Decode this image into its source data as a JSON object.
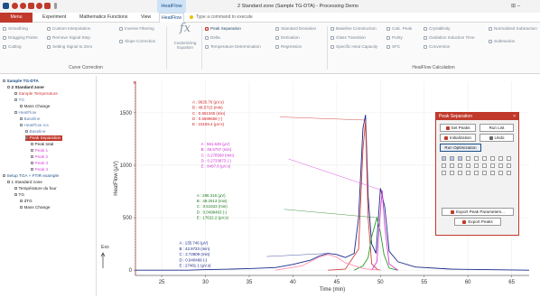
{
  "window": {
    "title": "2 Standard zone (Sample TG-DTA) - Processing Demo",
    "context_tab": "HeatFlow",
    "ctrl_glyph": "⊞ –"
  },
  "tabs": [
    "Menu",
    "Experiment",
    "Mathematics Functions",
    "View",
    "HeatFlow"
  ],
  "tell_me": "Type a command to execute",
  "ribbon": {
    "curve_correction": {
      "group": "Curve Correction",
      "items": [
        "Smoothing",
        "Dragging Points",
        "Cutting",
        "Custom Interpolation",
        "Remove Signal Step",
        "Setting Signal to Zero",
        "Inverse Filtering",
        "Slope Correction"
      ]
    },
    "customizing_equation": "Customizing Equation",
    "peaks": {
      "items": [
        "Peak Separation",
        "Delta",
        "Temperature Determination"
      ]
    },
    "derived": {
      "items": [
        "Standard Deviation",
        "Derivation",
        "Regression"
      ]
    },
    "heatflow_calc": {
      "group": "HeatFlow Calculation",
      "items": [
        "Baseline Construction",
        "Glass Transition",
        "Specific Heat Capacity",
        "Calc. Peak",
        "Purity",
        "SFC",
        "Crystallinity",
        "Oxidation Induction Time",
        "Conversion",
        "Normalized Subtraction",
        "Subtraction"
      ]
    }
  },
  "tree": [
    {
      "label": "Sample TG-DTA",
      "x": 3,
      "y": 3,
      "color": "#1d4f86",
      "bold": true
    },
    {
      "label": "2 Standard zone",
      "x": 8,
      "y": 10,
      "color": "#222",
      "bold": true
    },
    {
      "label": "Sample Temperature",
      "x": 16,
      "y": 17,
      "color": "#d03a3a"
    },
    {
      "label": "TG",
      "x": 16,
      "y": 24,
      "color": "#5a7fb0"
    },
    {
      "label": "Mass Change",
      "x": 22,
      "y": 31,
      "color": "#222"
    },
    {
      "label": "HeatFlow",
      "x": 16,
      "y": 38,
      "color": "#5a7fb0"
    },
    {
      "label": "Baseline",
      "x": 22,
      "y": 45,
      "color": "#5a7fb0"
    },
    {
      "label": "HeatFlow rcs",
      "x": 22,
      "y": 52,
      "color": "#5a7fb0"
    },
    {
      "label": "Baseline",
      "x": 28,
      "y": 59,
      "color": "#5a7fb0"
    },
    {
      "label": "Peak Separation",
      "x": 28,
      "y": 66,
      "color": "#222",
      "highlight": true
    },
    {
      "label": "Peak total",
      "x": 34,
      "y": 73,
      "color": "#222"
    },
    {
      "label": "Peak 1",
      "x": 34,
      "y": 80,
      "color": "#e040e0"
    },
    {
      "label": "Peak 2",
      "x": 34,
      "y": 87,
      "color": "#e040e0"
    },
    {
      "label": "Peak 3",
      "x": 34,
      "y": 94,
      "color": "#e040e0"
    },
    {
      "label": "Peak 4",
      "x": 34,
      "y": 101,
      "color": "#e040e0"
    },
    {
      "label": "Setup TGA + FTIR example",
      "x": 3,
      "y": 108,
      "color": "#1d4f86"
    },
    {
      "label": "1 Standard zone",
      "x": 8,
      "y": 115,
      "color": "#222"
    },
    {
      "label": "Température du four",
      "x": 16,
      "y": 122,
      "color": "#222"
    },
    {
      "label": "TG",
      "x": 16,
      "y": 129,
      "color": "#222"
    },
    {
      "label": "dTG",
      "x": 22,
      "y": 136,
      "color": "#222"
    },
    {
      "label": "Mass Change",
      "x": 22,
      "y": 143,
      "color": "#222"
    }
  ],
  "chart_data": {
    "type": "line",
    "xlabel": "Time (min)",
    "ylabel": "HeatFlow (µV)",
    "xlim": [
      22,
      67
    ],
    "ylim": [
      -50,
      1800
    ],
    "xticks": [
      25,
      30,
      35,
      40,
      45,
      50,
      55,
      60,
      65
    ],
    "yticks": [
      0,
      500,
      1000,
      1500
    ],
    "exo_label": "Exo",
    "series": [
      {
        "color": "#1a2a8a",
        "x": [
          22,
          25,
          28,
          30,
          33,
          35,
          38,
          40,
          42,
          43,
          44,
          45,
          46,
          47,
          47.5,
          48,
          48.3,
          48.6,
          49,
          49.5,
          50,
          50.5,
          51,
          52,
          54,
          58,
          62,
          67
        ],
        "y": [
          0,
          0,
          0,
          5,
          10,
          15,
          25,
          55,
          95,
          135,
          160,
          150,
          120,
          160,
          500,
          1350,
          1480,
          700,
          250,
          160,
          780,
          600,
          180,
          80,
          30,
          10,
          5,
          0
        ]
      },
      {
        "color": "#d04040",
        "x": [
          44,
          46,
          47.5,
          48,
          48.3,
          48.6,
          49,
          49.6,
          50
        ],
        "y": [
          0,
          10,
          200,
          1150,
          1420,
          500,
          60,
          10,
          0
        ]
      },
      {
        "color": "#2a9a2a",
        "x": [
          47,
          48,
          48.6,
          49,
          49.6,
          50,
          50.4,
          51,
          52
        ],
        "y": [
          0,
          40,
          120,
          320,
          500,
          360,
          150,
          20,
          0
        ]
      },
      {
        "color": "#d040d0",
        "x": [
          49,
          49.6,
          50,
          50.2,
          50.5,
          51,
          52
        ],
        "y": [
          0,
          80,
          560,
          760,
          420,
          60,
          0
        ]
      },
      {
        "color": "#ff90b0",
        "x": [
          38,
          41,
          43,
          44,
          45,
          46,
          48,
          50
        ],
        "y": [
          0,
          40,
          125,
          150,
          125,
          70,
          15,
          0
        ]
      }
    ],
    "annotations": [
      {
        "color": "#d02020",
        "x": 28.5,
        "y": 1590,
        "lines": [
          "A : 9626.76 (µV.s)",
          "B : 48.5715 (min)",
          "C : 0.651345 (min)",
          "D : 0.6699658 (-)",
          "E : 23169.4 (µV.s)"
        ]
      },
      {
        "color": "#d030d0",
        "x": 29.5,
        "y": 1190,
        "lines": [
          "A : 561.629 (µV)",
          "B : 49.5707 (min)",
          "C : 0.278598 (min)",
          "D : 0.2733873 (-)",
          "E : 8497.8 (µV.s)"
        ]
      },
      {
        "color": "#1a7a1a",
        "x": 29,
        "y": 700,
        "lines": [
          "A : 296.316 (µV)",
          "B : 48.2513 (min)",
          "C : 0.51633 (min)",
          "D : 0.0498493 (-)",
          "E : 17622.2 (µV.s)"
        ]
      },
      {
        "color": "#1a2a8a",
        "x": 27,
        "y": 245,
        "lines": [
          "A : 135.746 (µV)",
          "B : 42.9733 (min)",
          "C : 2.72809 (min)",
          "D : 0.040469 (-)",
          "E : 27481.1 (µV.s)"
        ]
      }
    ],
    "annotation_leaders": [
      {
        "color": "#d02020",
        "from": [
          38.5,
          1460
        ],
        "to": [
          48.3,
          1430
        ]
      },
      {
        "color": "#d030d0",
        "from": [
          39.5,
          1060
        ],
        "to": [
          50.2,
          760
        ]
      },
      {
        "color": "#1a7a1a",
        "from": [
          39,
          580
        ],
        "to": [
          49.6,
          500
        ]
      },
      {
        "color": "#1a2a8a",
        "from": [
          37,
          130
        ],
        "to": [
          44,
          160
        ]
      }
    ]
  },
  "peak_separation": {
    "title": "Peak Separation",
    "set_peaks": "Set Peaks",
    "run_list": "Run List",
    "initialization": "Initialization",
    "undo": "Undo",
    "run_optimization": "Run Optimization",
    "export_params": "Export Peak Parameters...",
    "export_peaks": "Export Peaks"
  }
}
